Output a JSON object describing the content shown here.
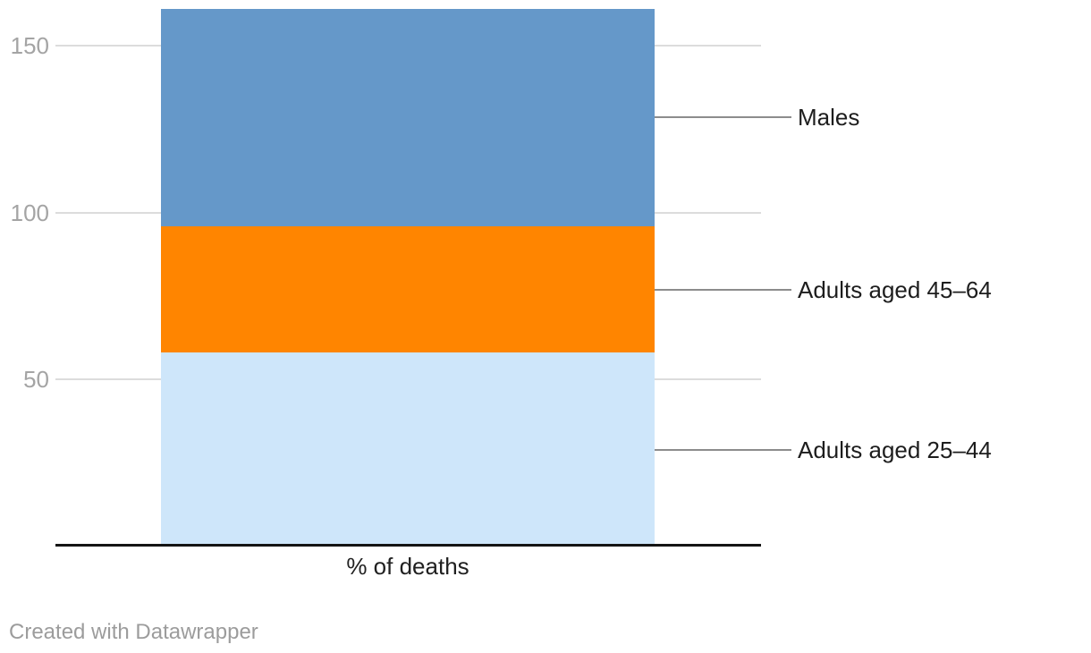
{
  "footer": {
    "credit": "Created with Datawrapper"
  },
  "colors": {
    "background": "#ffffff",
    "gridline": "#dcdcdc",
    "axis_line": "#141414",
    "tick_label": "#a4a4a4",
    "label_text": "#1d1d1d",
    "connector_line": "#8c8c8c",
    "credit_text": "#9c9c9c"
  },
  "chart_data": {
    "type": "bar",
    "subtype": "stacked-column",
    "title": "",
    "xlabel": "% of deaths",
    "ylabel": "",
    "categories": [
      "% of deaths"
    ],
    "series": [
      {
        "name": "Adults aged 25–44",
        "values": [
          58
        ],
        "color": "#cee6fa"
      },
      {
        "name": "Adults aged 45–64",
        "values": [
          38
        ],
        "color": "#ff8500"
      },
      {
        "name": "Males",
        "values": [
          65
        ],
        "color": "#6598c9"
      }
    ],
    "stack_total": 161,
    "yticks": [
      50,
      100,
      150
    ],
    "ylim": [
      0,
      161
    ],
    "grid": true,
    "legend_position": "right-connected-to-segments"
  }
}
